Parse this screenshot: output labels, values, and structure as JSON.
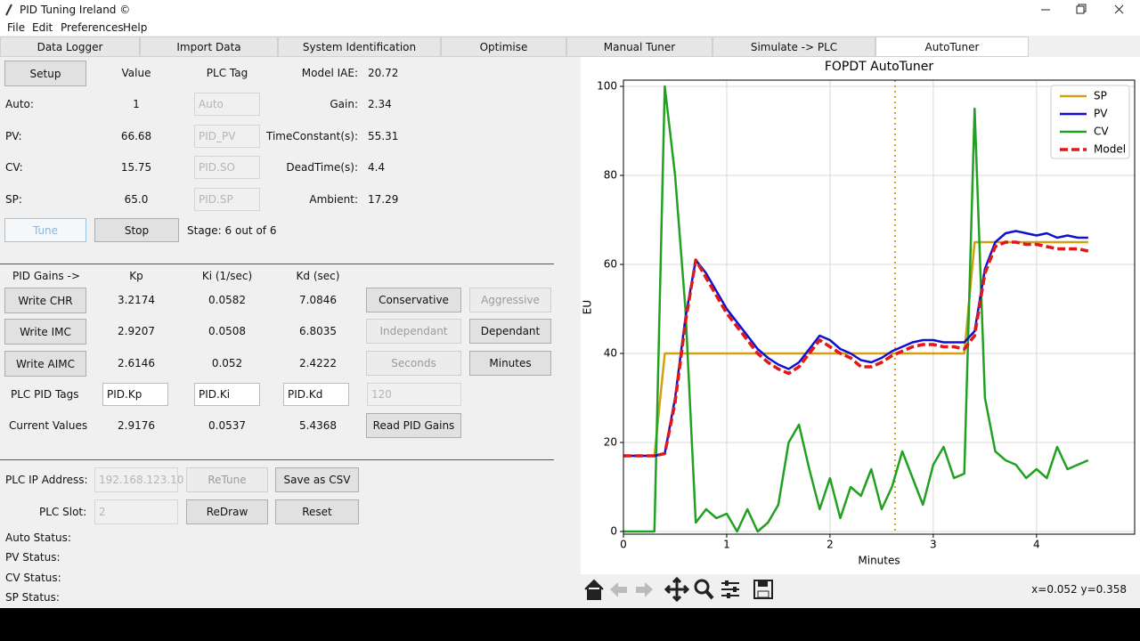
{
  "window": {
    "title": "PID Tuning Ireland ©",
    "menu": [
      "File",
      "Edit",
      "Preferences",
      "Help"
    ],
    "status": "x=0.052 y=0.358"
  },
  "tabs": {
    "items": [
      "Data Logger",
      "Import Data",
      "System Identification",
      "Optimise",
      "Manual Tuner",
      "Simulate -> PLC",
      "AutoTuner"
    ],
    "selected": 6
  },
  "setup_panel": {
    "setup_button": "Setup",
    "value_header": "Value",
    "tag_header": "PLC Tag",
    "rows": [
      {
        "label": "Auto:",
        "value": "1",
        "tag": "Auto"
      },
      {
        "label": "PV:",
        "value": "66.68",
        "tag": "PID_PV"
      },
      {
        "label": "CV:",
        "value": "15.75",
        "tag": "PID.SO"
      },
      {
        "label": "SP:",
        "value": "65.0",
        "tag": "PID.SP"
      }
    ],
    "model": [
      {
        "label": "Model IAE:",
        "value": "20.72"
      },
      {
        "label": "Gain:",
        "value": "2.34"
      },
      {
        "label": "TimeConstant(s):",
        "value": "55.31"
      },
      {
        "label": "DeadTime(s):",
        "value": "4.4"
      },
      {
        "label": "Ambient:",
        "value": "17.29"
      }
    ],
    "tune_button": "Tune",
    "stop_button": "Stop",
    "stage": "Stage: 6 out of 6"
  },
  "gains_panel": {
    "headers": [
      "PID Gains ->",
      "Kp",
      "Ki (1/sec)",
      "Kd (sec)"
    ],
    "rows": [
      {
        "button": "Write CHR",
        "kp": "3.2174",
        "ki": "0.0582",
        "kd": "7.0846",
        "options": [
          "Conservative",
          "Aggressive"
        ]
      },
      {
        "button": "Write IMC",
        "kp": "2.9207",
        "ki": "0.0508",
        "kd": "6.8035",
        "options": [
          "Independant",
          "Dependant"
        ]
      },
      {
        "button": "Write AIMC",
        "kp": "2.6146",
        "ki": "0.052",
        "kd": "2.4222",
        "options": [
          "Seconds",
          "Minutes"
        ]
      }
    ],
    "tags_label": "PLC PID Tags",
    "tags": [
      "PID.Kp",
      "PID.Ki",
      "PID.Kd",
      "120"
    ],
    "current_label": "Current Values",
    "current": [
      "2.9176",
      "0.0537",
      "5.4368"
    ],
    "read_button": "Read PID Gains"
  },
  "plc_panel": {
    "ip_label": "PLC IP Address:",
    "ip": "192.168.123.10",
    "slot_label": "PLC Slot:",
    "slot": "2",
    "buttons": [
      "ReTune",
      "Save as CSV",
      "ReDraw",
      "Reset"
    ],
    "status": [
      "Auto Status:",
      "PV Status:",
      "CV Status:",
      "SP Status:"
    ]
  },
  "chart_data": {
    "type": "line",
    "title": "FOPDT AutoTuner",
    "x_label": "Minutes",
    "y_label": "EU",
    "xlim": [
      0,
      4.95
    ],
    "ylim": [
      -0.6,
      101.4
    ],
    "xticks": [
      0,
      1,
      2,
      3,
      4
    ],
    "yticks": [
      0,
      20,
      40,
      60,
      80,
      100
    ],
    "grid": true,
    "legend": "upper right",
    "x": [
      0,
      0.1,
      0.2,
      0.3,
      0.4,
      0.5,
      0.6,
      0.7,
      0.8,
      0.9,
      1.0,
      1.1,
      1.2,
      1.3,
      1.4,
      1.5,
      1.6,
      1.7,
      1.8,
      1.9,
      2.0,
      2.1,
      2.2,
      2.3,
      2.4,
      2.5,
      2.6,
      2.7,
      2.8,
      2.9,
      3.0,
      3.1,
      3.2,
      3.3,
      3.4,
      3.5,
      3.6,
      3.7,
      3.8,
      3.9,
      4.0,
      4.1,
      4.2,
      4.3,
      4.4,
      4.5
    ],
    "vline": {
      "x": 2.63,
      "color": "#e0a020"
    },
    "series": [
      {
        "name": "SP",
        "color": "#d4a010",
        "values": [
          17,
          17,
          17,
          17,
          40,
          40,
          40,
          40,
          40,
          40,
          40,
          40,
          40,
          40,
          40,
          40,
          40,
          40,
          40,
          40,
          40,
          40,
          40,
          40,
          40,
          40,
          40,
          40,
          40,
          40,
          40,
          40,
          40,
          40,
          65,
          65,
          65,
          65,
          65,
          65,
          65,
          65,
          65,
          65,
          65,
          65
        ]
      },
      {
        "name": "PV",
        "color": "#1010d0",
        "values": [
          17,
          17,
          17,
          17,
          17.5,
          30,
          48,
          61,
          58,
          54,
          50,
          47,
          44,
          41,
          39,
          37.5,
          36.5,
          38,
          41,
          44,
          43,
          41,
          40,
          38.5,
          38,
          39,
          40.5,
          41.5,
          42.5,
          43,
          43,
          42.5,
          42.5,
          42.5,
          45,
          59,
          65,
          67,
          67.5,
          67,
          66.5,
          67,
          66,
          66.5,
          66,
          66
        ]
      },
      {
        "name": "CV",
        "color": "#22a022",
        "values": [
          0,
          0,
          0,
          0,
          100,
          80,
          50,
          2,
          5,
          3,
          4,
          0,
          5,
          0,
          2,
          6,
          20,
          24,
          14,
          5,
          12,
          3,
          10,
          8,
          14,
          5,
          10,
          18,
          12,
          6,
          15,
          19,
          12,
          13,
          95,
          30,
          18,
          16,
          15,
          12,
          14,
          12,
          19,
          14,
          15,
          16
        ]
      },
      {
        "name": "Model",
        "color": "#e01818",
        "dashed": true,
        "values": [
          17,
          17,
          17,
          17,
          17.5,
          29,
          47,
          61,
          57,
          53,
          49,
          46,
          43,
          40,
          38,
          36.5,
          35.5,
          37,
          40,
          43,
          41.5,
          40,
          39,
          37,
          37,
          38,
          39.5,
          40.5,
          41.5,
          42,
          42,
          41.5,
          41.5,
          41,
          44,
          58,
          64,
          65,
          65,
          64.5,
          64.5,
          64,
          63.5,
          63.5,
          63.5,
          63
        ]
      }
    ]
  }
}
